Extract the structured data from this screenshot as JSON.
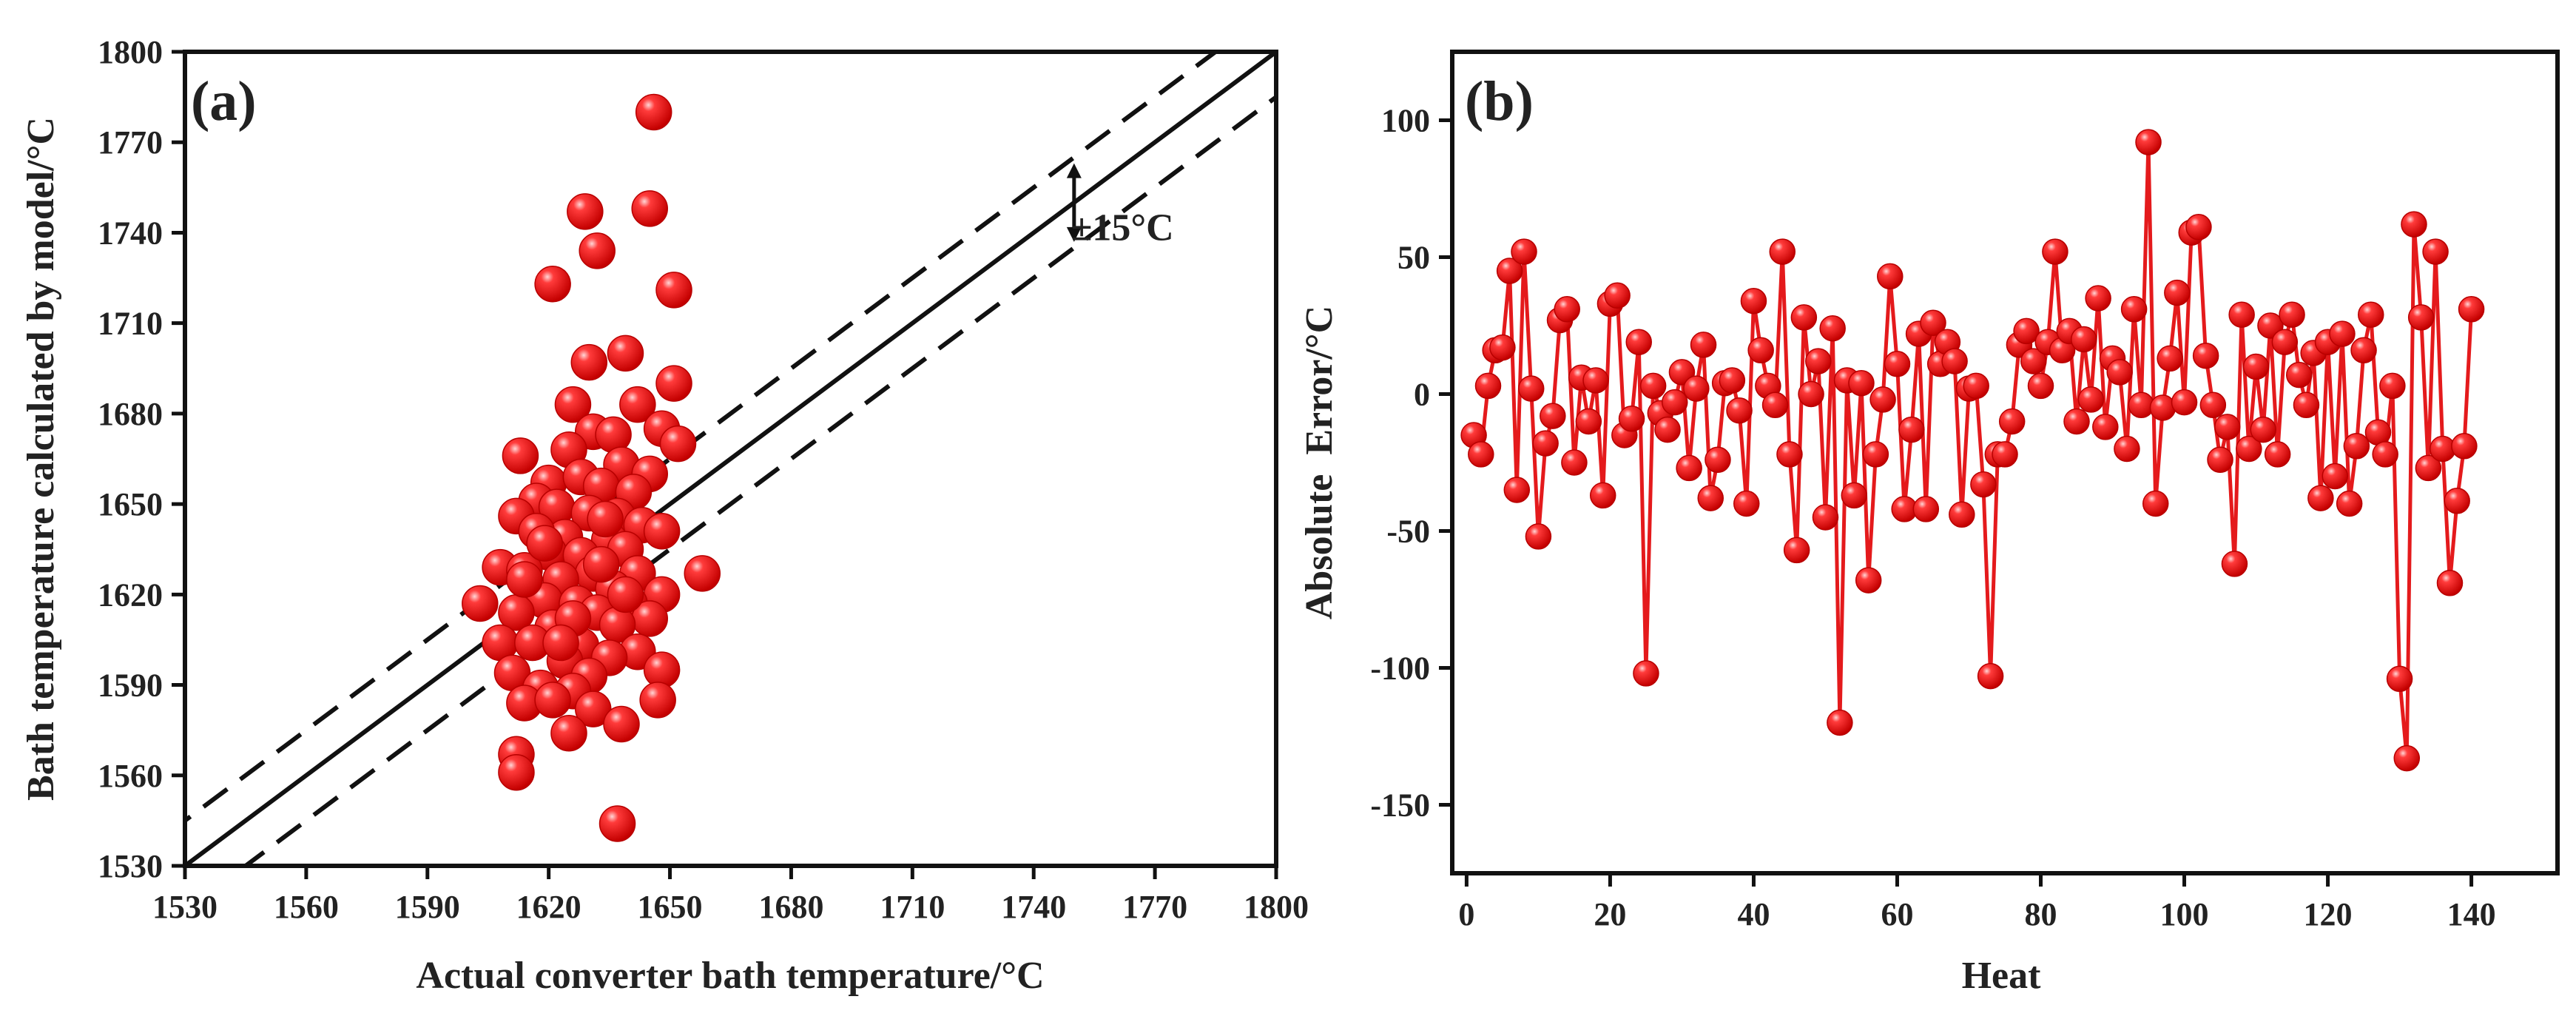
{
  "colors": {
    "marker": "#e41a1c",
    "marker_edge": "#b80000",
    "line": "#e41a1c",
    "axis": "#111111"
  },
  "chart_data": [
    {
      "type": "scatter",
      "panel_label": "(a)",
      "xlabel": "Actual converter bath temperature/°C",
      "ylabel": "Bath temperature calculated by model/°C",
      "xlim": [
        1530,
        1800
      ],
      "ylim": [
        1530,
        1800
      ],
      "xticks": [
        1530,
        1560,
        1590,
        1620,
        1650,
        1680,
        1710,
        1740,
        1770,
        1800
      ],
      "yticks": [
        1530,
        1560,
        1590,
        1620,
        1650,
        1680,
        1710,
        1740,
        1770,
        1800
      ],
      "reference_lines": [
        {
          "name": "y = x",
          "offset": 0,
          "style": "solid"
        },
        {
          "name": "+15",
          "offset": 15,
          "style": "dashed"
        },
        {
          "name": "-15",
          "offset": -15,
          "style": "dashed"
        }
      ],
      "annotation": {
        "text": "±15°C",
        "x": 1750,
        "y": 1741
      },
      "points": [
        [
          1646,
          1780
        ],
        [
          1629,
          1747
        ],
        [
          1645,
          1748
        ],
        [
          1632,
          1734
        ],
        [
          1621,
          1723
        ],
        [
          1651,
          1721
        ],
        [
          1639,
          1700
        ],
        [
          1630,
          1697
        ],
        [
          1651,
          1690
        ],
        [
          1626,
          1683
        ],
        [
          1642,
          1683
        ],
        [
          1648,
          1675
        ],
        [
          1652,
          1670
        ],
        [
          1613,
          1666
        ],
        [
          1631,
          1674
        ],
        [
          1636,
          1673
        ],
        [
          1625,
          1668
        ],
        [
          1638,
          1663
        ],
        [
          1645,
          1660
        ],
        [
          1620,
          1657
        ],
        [
          1628,
          1659
        ],
        [
          1633,
          1656
        ],
        [
          1617,
          1651
        ],
        [
          1641,
          1654
        ],
        [
          1622,
          1649
        ],
        [
          1612,
          1646
        ],
        [
          1630,
          1647
        ],
        [
          1637,
          1646
        ],
        [
          1643,
          1643
        ],
        [
          1624,
          1639
        ],
        [
          1648,
          1641
        ],
        [
          1617,
          1641
        ],
        [
          1635,
          1638
        ],
        [
          1620,
          1634
        ],
        [
          1628,
          1633
        ],
        [
          1639,
          1635
        ],
        [
          1608,
          1629
        ],
        [
          1614,
          1628
        ],
        [
          1631,
          1627
        ],
        [
          1642,
          1627
        ],
        [
          1658,
          1627
        ],
        [
          1623,
          1625
        ],
        [
          1636,
          1622
        ],
        [
          1648,
          1620
        ],
        [
          1603,
          1617
        ],
        [
          1619,
          1618
        ],
        [
          1627,
          1617
        ],
        [
          1640,
          1617
        ],
        [
          1612,
          1614
        ],
        [
          1632,
          1614
        ],
        [
          1645,
          1612
        ],
        [
          1621,
          1609
        ],
        [
          1637,
          1610
        ],
        [
          1608,
          1604
        ],
        [
          1616,
          1604
        ],
        [
          1628,
          1603
        ],
        [
          1642,
          1601
        ],
        [
          1624,
          1598
        ],
        [
          1635,
          1599
        ],
        [
          1611,
          1594
        ],
        [
          1630,
          1593
        ],
        [
          1648,
          1595
        ],
        [
          1618,
          1589
        ],
        [
          1626,
          1588
        ],
        [
          1614,
          1584
        ],
        [
          1621,
          1585
        ],
        [
          1631,
          1582
        ],
        [
          1647,
          1585
        ],
        [
          1638,
          1577
        ],
        [
          1625,
          1574
        ],
        [
          1612,
          1567
        ],
        [
          1612,
          1561
        ],
        [
          1637,
          1544
        ],
        [
          1614,
          1625
        ],
        [
          1634,
          1645
        ],
        [
          1626,
          1612
        ],
        [
          1619,
          1637
        ],
        [
          1639,
          1620
        ],
        [
          1623,
          1604
        ],
        [
          1633,
          1630
        ]
      ]
    },
    {
      "type": "line",
      "panel_label": "(b)",
      "xlabel": "Heat",
      "ylabel": "Absolute  Error/°C",
      "xlim": [
        -2,
        152
      ],
      "ylim": [
        -175,
        125
      ],
      "xticks": [
        0,
        20,
        40,
        60,
        80,
        100,
        120,
        140
      ],
      "yticks": [
        -150,
        -100,
        -50,
        0,
        50,
        100
      ],
      "x_start": 1,
      "values": [
        -15,
        -22,
        3,
        16,
        17,
        45,
        -35,
        52,
        2,
        -52,
        -18,
        -8,
        27,
        31,
        -25,
        6,
        -10,
        5,
        -37,
        33,
        36,
        -15,
        -9,
        19,
        -102,
        3,
        -7,
        -13,
        -3,
        8,
        -27,
        2,
        18,
        -38,
        -24,
        4,
        5,
        -6,
        -40,
        34,
        16,
        3,
        -4,
        52,
        -22,
        -57,
        28,
        0,
        12,
        -45,
        24,
        -120,
        5,
        -37,
        4,
        -68,
        -22,
        -2,
        43,
        11,
        -42,
        -13,
        22,
        -42,
        26,
        11,
        19,
        12,
        -44,
        2,
        3,
        -33,
        -103,
        -22,
        -22,
        -10,
        18,
        23,
        12,
        3,
        19,
        52,
        16,
        23,
        -10,
        20,
        -2,
        35,
        -12,
        13,
        8,
        -20,
        31,
        -4,
        92,
        -40,
        -5,
        13,
        37,
        -3,
        59,
        61,
        14,
        -4,
        -24,
        -12,
        -62,
        29,
        -20,
        10,
        -13,
        25,
        -22,
        19,
        29,
        7,
        -4,
        15,
        -38,
        19,
        -30,
        22,
        -40,
        -19,
        16,
        29,
        -14,
        -22,
        3,
        -104,
        -133,
        62,
        28,
        -27,
        52,
        -20,
        -69,
        -39,
        -19,
        31
      ]
    }
  ]
}
